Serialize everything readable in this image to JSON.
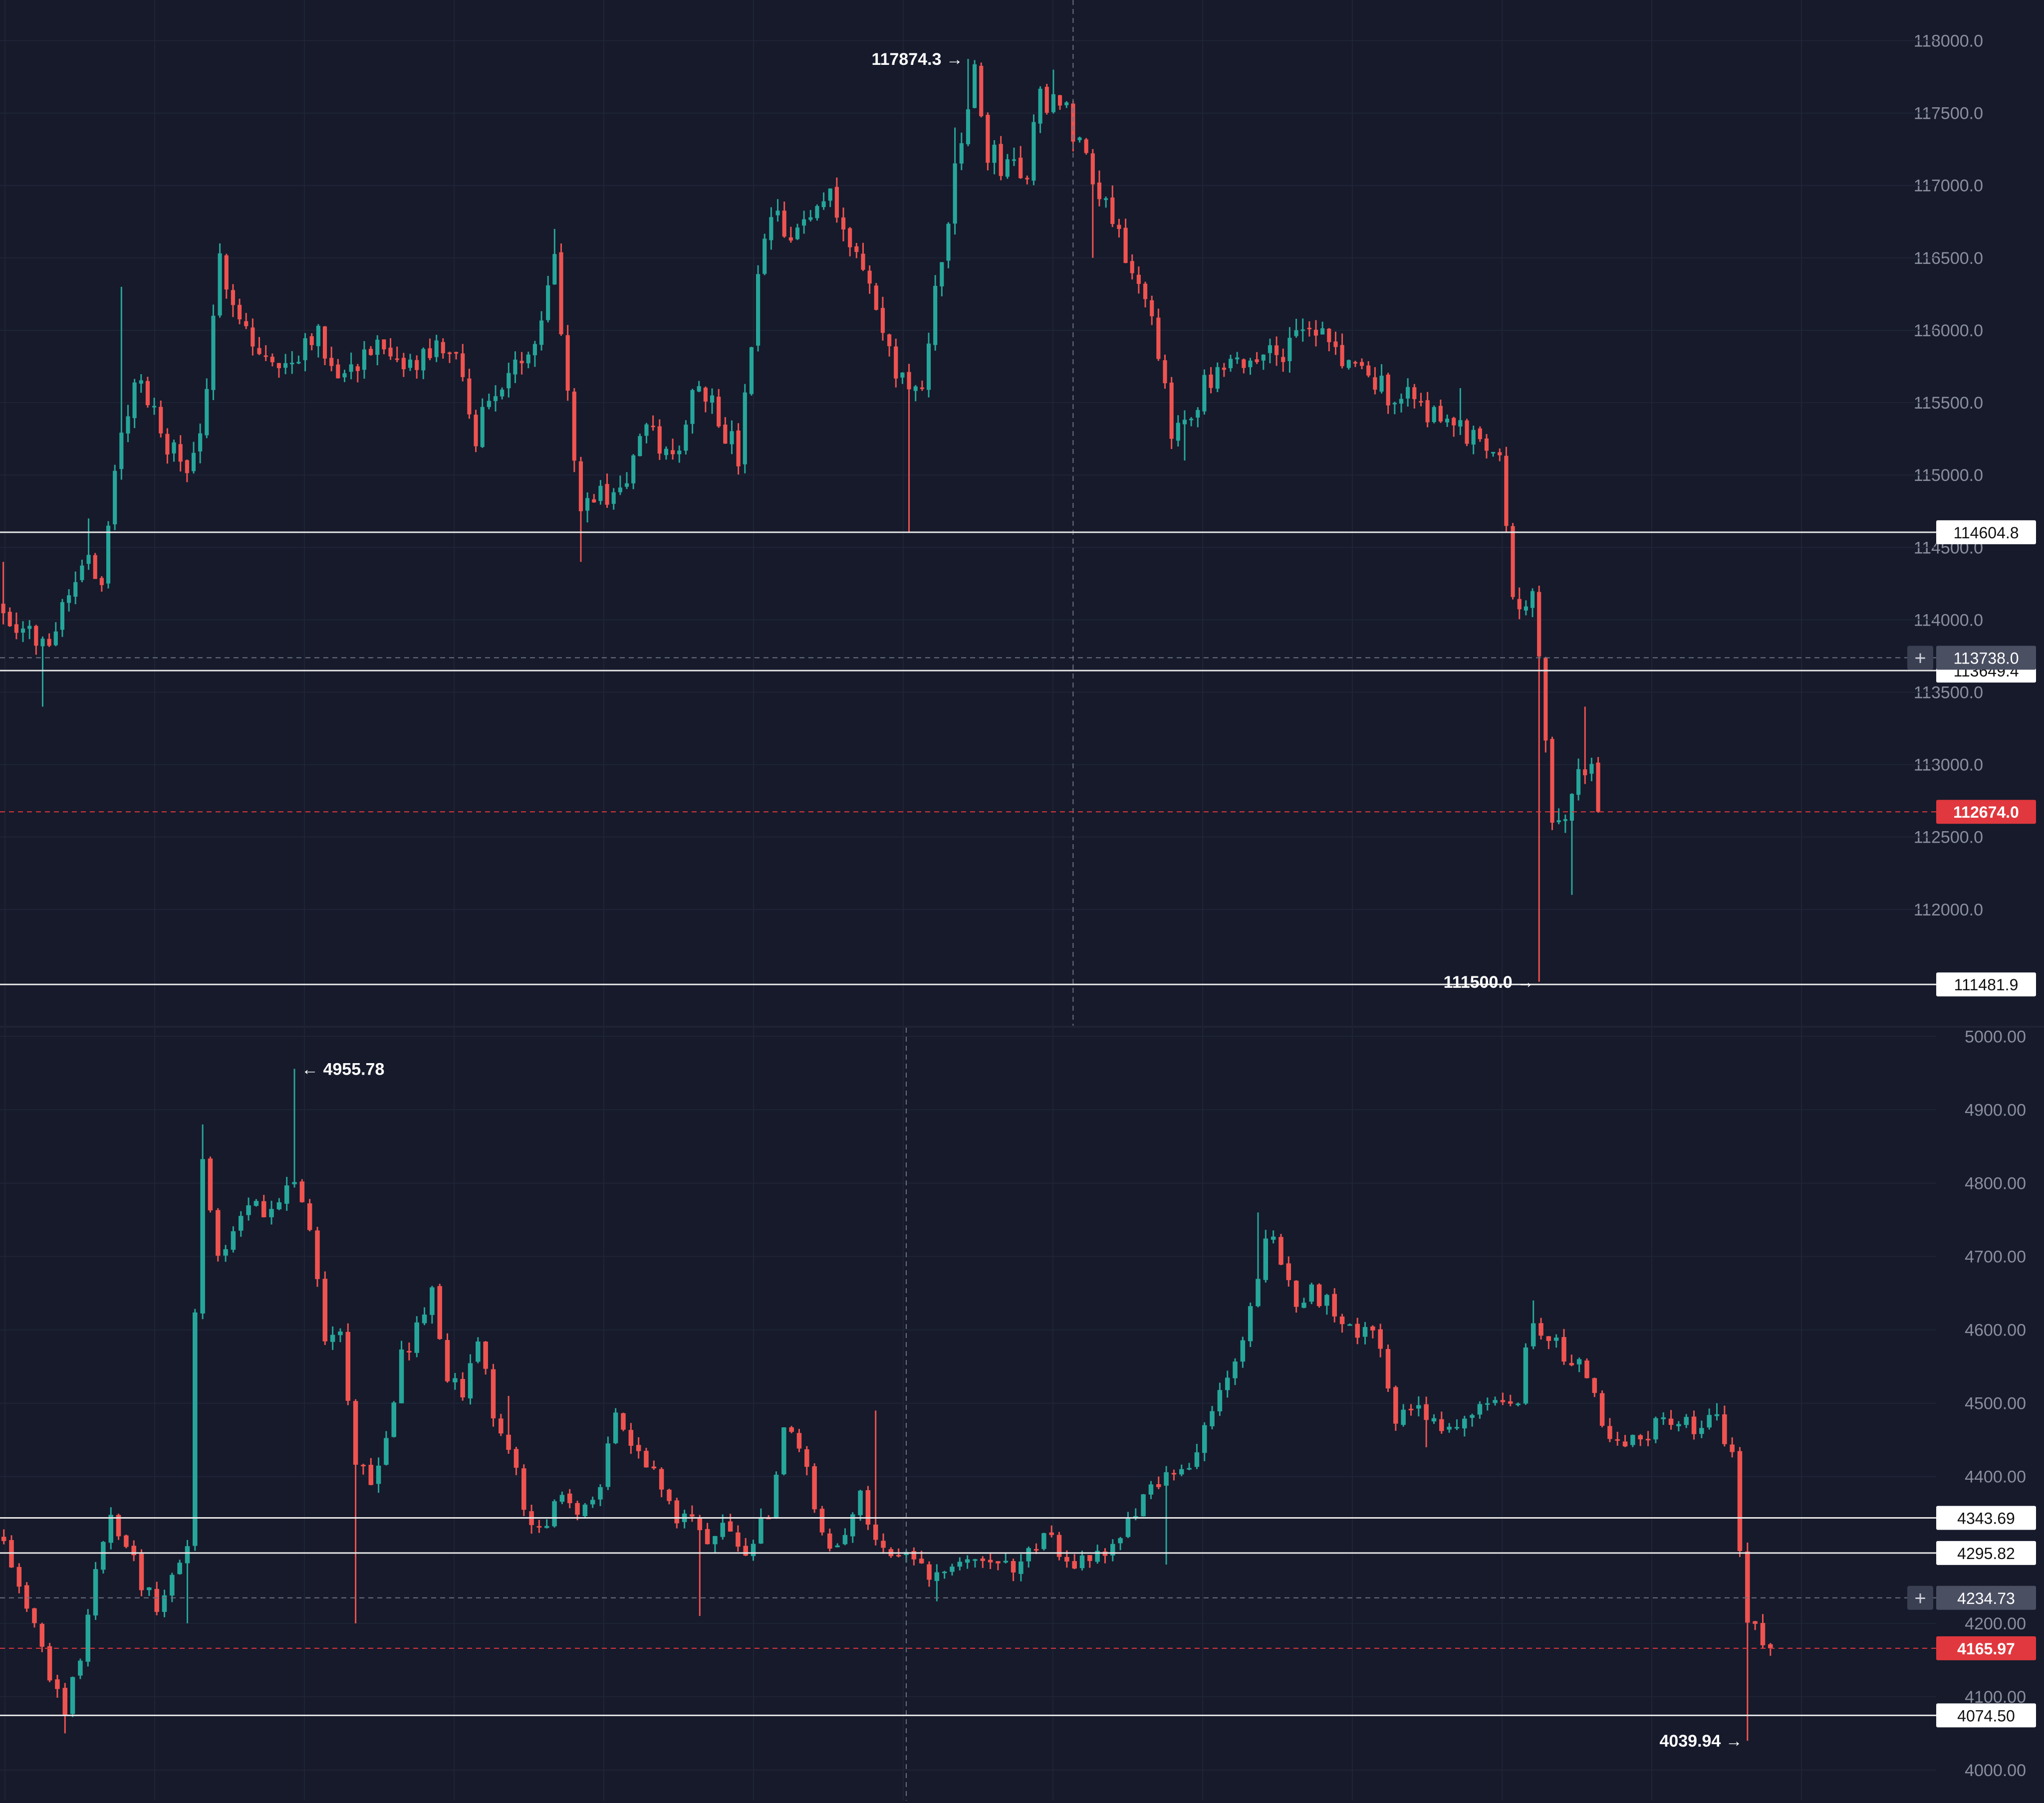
{
  "colors": {
    "background": "#161a2b",
    "grid": "#1f2436",
    "up": "#26a69a",
    "down": "#ef5350",
    "axis_text": "#8a8f9e",
    "level_line": "#e6e6e6",
    "crosshair": "#6b7080",
    "last_price_bg": "#e0383e"
  },
  "chart_data": [
    {
      "type": "candlestick",
      "title": "",
      "xlabel": "",
      "ylabel": "",
      "ylim": [
        111200,
        118150
      ],
      "y_ticks": [
        "118000.0",
        "117500.0",
        "117000.0",
        "116500.0",
        "116000.0",
        "115500.0",
        "115000.0",
        "114500.0",
        "114000.0",
        "113500.0",
        "113000.0",
        "112500.0",
        "112000.0"
      ],
      "y_tick_values": [
        118000,
        117500,
        117000,
        116500,
        116000,
        115500,
        115000,
        114500,
        114000,
        113500,
        113000,
        112500,
        112000
      ],
      "candle_count": 276,
      "close_path": [
        [
          0,
          114100
        ],
        [
          6,
          113800
        ],
        [
          13,
          114500
        ],
        [
          15,
          114200
        ],
        [
          17,
          115000
        ],
        [
          20,
          115700
        ],
        [
          24,
          115300
        ],
        [
          28,
          115000
        ],
        [
          31,
          115500
        ],
        [
          33,
          116500
        ],
        [
          38,
          115900
        ],
        [
          42,
          115700
        ],
        [
          47,
          116000
        ],
        [
          52,
          115700
        ],
        [
          56,
          115900
        ],
        [
          60,
          115700
        ],
        [
          68,
          115900
        ],
        [
          72,
          115300
        ],
        [
          75,
          115600
        ],
        [
          78,
          115700
        ],
        [
          81,
          116000
        ],
        [
          84,
          116500
        ],
        [
          86,
          115600
        ],
        [
          88,
          114800
        ],
        [
          94,
          114900
        ],
        [
          98,
          115300
        ],
        [
          102,
          115100
        ],
        [
          106,
          115700
        ],
        [
          112,
          115100
        ],
        [
          115,
          116300
        ],
        [
          117,
          116800
        ],
        [
          120,
          116600
        ],
        [
          126,
          117000
        ],
        [
          129,
          116600
        ],
        [
          132,
          116300
        ],
        [
          135,
          115800
        ],
        [
          140,
          115500
        ],
        [
          142,
          116300
        ],
        [
          144,
          116800
        ],
        [
          146,
          117300
        ],
        [
          148,
          117800
        ],
        [
          150,
          117200
        ],
        [
          156,
          117100
        ],
        [
          158,
          117600
        ],
        [
          160,
          117600
        ],
        [
          162,
          117500
        ],
        [
          166,
          117100
        ],
        [
          170,
          116700
        ],
        [
          175,
          116000
        ],
        [
          178,
          115300
        ],
        [
          183,
          115600
        ],
        [
          190,
          115800
        ],
        [
          196,
          115900
        ],
        [
          200,
          116000
        ],
        [
          204,
          115800
        ],
        [
          210,
          115600
        ],
        [
          216,
          115500
        ],
        [
          222,
          115300
        ],
        [
          228,
          115200
        ],
        [
          230,
          114200
        ],
        [
          233,
          114100
        ],
        [
          234,
          113700
        ],
        [
          236,
          112700
        ],
        [
          238,
          112600
        ],
        [
          240,
          112900
        ],
        [
          242,
          113000
        ],
        [
          243,
          112674
        ]
      ],
      "wick_high": [
        [
          0,
          114400
        ],
        [
          13,
          114700
        ],
        [
          18,
          116300
        ],
        [
          33,
          116600
        ],
        [
          84,
          116700
        ],
        [
          145,
          117400
        ],
        [
          147,
          117874.3
        ],
        [
          160,
          117800
        ],
        [
          183,
          115700
        ],
        [
          196,
          116000
        ],
        [
          222,
          115600
        ],
        [
          241,
          113400
        ]
      ],
      "wick_low": [
        [
          6,
          113400
        ],
        [
          88,
          114400
        ],
        [
          138,
          114600
        ],
        [
          166,
          116500
        ],
        [
          180,
          115100
        ],
        [
          232,
          114100
        ],
        [
          234,
          111500
        ],
        [
          239,
          112100
        ]
      ],
      "annotations": [
        {
          "label": "117874.3",
          "value": 117874.3,
          "arrow": "→",
          "kind": "high"
        },
        {
          "label": "111500.0",
          "value": 111500.0,
          "arrow": "→",
          "kind": "low"
        }
      ],
      "levels": [
        {
          "label": "114604.8",
          "value": 114604.8
        },
        {
          "label": "113649.4",
          "value": 113649.4
        },
        {
          "label": "111481.9",
          "value": 111481.9
        }
      ],
      "crosshair": {
        "label": "113738.0",
        "value": 113738.0,
        "x_index": 163
      },
      "last_price": {
        "label": "112674.0",
        "value": 112674.0
      }
    },
    {
      "type": "candlestick",
      "title": "",
      "xlabel": "",
      "ylabel": "",
      "ylim": [
        3985,
        5005
      ],
      "y_ticks": [
        "5000.00",
        "4900.00",
        "4800.00",
        "4700.00",
        "4600.00",
        "4500.00",
        "4400.00",
        "4200.00",
        "4100.00",
        "4000.00"
      ],
      "y_tick_values": [
        5000,
        4900,
        4800,
        4700,
        4600,
        4500,
        4400,
        4200,
        4100,
        4000
      ],
      "candle_count": 246,
      "close_path": [
        [
          0,
          4320
        ],
        [
          3,
          4230
        ],
        [
          6,
          4130
        ],
        [
          8,
          4070
        ],
        [
          10,
          4160
        ],
        [
          12,
          4260
        ],
        [
          14,
          4340
        ],
        [
          16,
          4300
        ],
        [
          18,
          4260
        ],
        [
          20,
          4220
        ],
        [
          22,
          4260
        ],
        [
          24,
          4290
        ],
        [
          25,
          4620
        ],
        [
          26,
          4840
        ],
        [
          28,
          4700
        ],
        [
          30,
          4730
        ],
        [
          32,
          4760
        ],
        [
          35,
          4770
        ],
        [
          38,
          4790
        ],
        [
          40,
          4740
        ],
        [
          41,
          4680
        ],
        [
          42,
          4590
        ],
        [
          44,
          4610
        ],
        [
          46,
          4420
        ],
        [
          48,
          4400
        ],
        [
          50,
          4450
        ],
        [
          52,
          4560
        ],
        [
          54,
          4600
        ],
        [
          56,
          4650
        ],
        [
          58,
          4540
        ],
        [
          60,
          4510
        ],
        [
          62,
          4580
        ],
        [
          64,
          4490
        ],
        [
          66,
          4450
        ],
        [
          68,
          4360
        ],
        [
          70,
          4320
        ],
        [
          72,
          4370
        ],
        [
          74,
          4350
        ],
        [
          76,
          4360
        ],
        [
          78,
          4390
        ],
        [
          80,
          4480
        ],
        [
          82,
          4450
        ],
        [
          84,
          4420
        ],
        [
          86,
          4380
        ],
        [
          88,
          4330
        ],
        [
          90,
          4360
        ],
        [
          92,
          4300
        ],
        [
          94,
          4330
        ],
        [
          96,
          4290
        ],
        [
          98,
          4320
        ],
        [
          100,
          4340
        ],
        [
          102,
          4460
        ],
        [
          104,
          4440
        ],
        [
          106,
          4370
        ],
        [
          108,
          4300
        ],
        [
          110,
          4330
        ],
        [
          112,
          4390
        ],
        [
          114,
          4300
        ],
        [
          116,
          4290
        ],
        [
          118,
          4300
        ],
        [
          120,
          4280
        ],
        [
          122,
          4260
        ],
        [
          124,
          4270
        ],
        [
          126,
          4290
        ],
        [
          128,
          4300
        ],
        [
          130,
          4290
        ],
        [
          132,
          4270
        ],
        [
          134,
          4290
        ],
        [
          136,
          4330
        ],
        [
          138,
          4290
        ],
        [
          140,
          4280
        ],
        [
          142,
          4290
        ],
        [
          144,
          4300
        ],
        [
          146,
          4310
        ],
        [
          148,
          4360
        ],
        [
          150,
          4380
        ],
        [
          152,
          4420
        ],
        [
          154,
          4410
        ],
        [
          156,
          4430
        ],
        [
          158,
          4500
        ],
        [
          160,
          4520
        ],
        [
          162,
          4590
        ],
        [
          164,
          4680
        ],
        [
          165,
          4730
        ],
        [
          167,
          4700
        ],
        [
          169,
          4630
        ],
        [
          171,
          4650
        ],
        [
          173,
          4640
        ],
        [
          175,
          4610
        ],
        [
          177,
          4600
        ],
        [
          179,
          4610
        ],
        [
          180,
          4560
        ],
        [
          182,
          4480
        ],
        [
          184,
          4480
        ],
        [
          186,
          4490
        ],
        [
          188,
          4460
        ],
        [
          190,
          4470
        ],
        [
          192,
          4480
        ],
        [
          194,
          4500
        ],
        [
          196,
          4490
        ],
        [
          198,
          4510
        ],
        [
          200,
          4620
        ],
        [
          202,
          4580
        ],
        [
          204,
          4570
        ],
        [
          206,
          4560
        ],
        [
          208,
          4500
        ],
        [
          210,
          4460
        ],
        [
          212,
          4440
        ],
        [
          214,
          4460
        ],
        [
          216,
          4470
        ],
        [
          218,
          4470
        ],
        [
          220,
          4470
        ],
        [
          222,
          4460
        ],
        [
          224,
          4480
        ],
        [
          226,
          4430
        ],
        [
          227,
          4300
        ],
        [
          228,
          4190
        ],
        [
          230,
          4180
        ],
        [
          231,
          4165.97
        ]
      ],
      "wick_high": [
        [
          26,
          4880
        ],
        [
          38,
          4955.78
        ],
        [
          57,
          4660
        ],
        [
          66,
          4510
        ],
        [
          114,
          4490
        ],
        [
          164,
          4760
        ],
        [
          200,
          4640
        ],
        [
          209,
          4500
        ],
        [
          224,
          4500
        ],
        [
          232,
          4210
        ]
      ],
      "wick_low": [
        [
          8,
          4050
        ],
        [
          24,
          4200
        ],
        [
          46,
          4200
        ],
        [
          91,
          4210
        ],
        [
          122,
          4230
        ],
        [
          152,
          4280
        ],
        [
          186,
          4440
        ],
        [
          228,
          4039.94
        ]
      ],
      "annotations": [
        {
          "label": "4955.78",
          "value": 4955.78,
          "arrow": "←",
          "kind": "high"
        },
        {
          "label": "4039.94",
          "value": 4039.94,
          "arrow": "→",
          "kind": "low"
        }
      ],
      "levels": [
        {
          "label": "4343.69",
          "value": 4343.69
        },
        {
          "label": "4295.82",
          "value": 4295.82
        },
        {
          "label": "4074.50",
          "value": 4074.5
        }
      ],
      "crosshair": {
        "label": "4234.73",
        "value": 4234.73,
        "x_index": 118
      },
      "last_price": {
        "label": "4165.97",
        "value": 4165.97
      }
    }
  ]
}
